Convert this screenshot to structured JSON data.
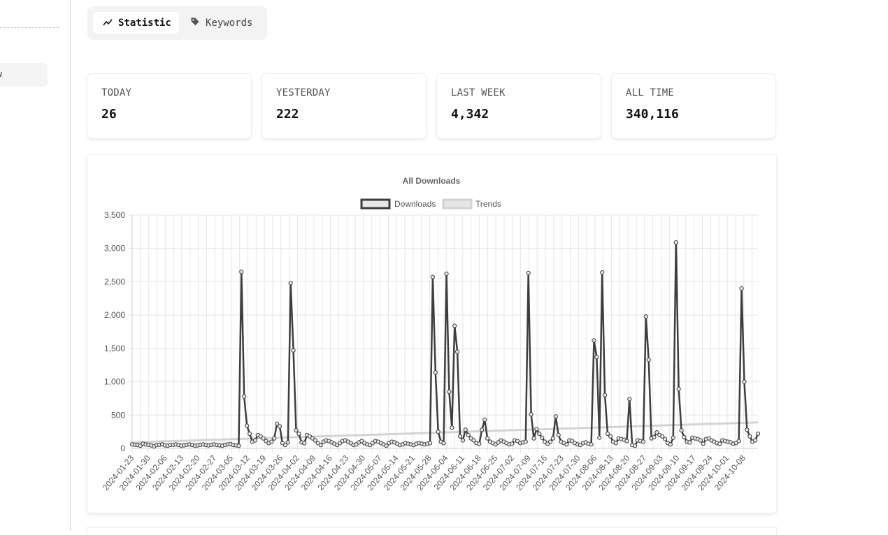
{
  "sidebar": {
    "active_item_label": "u"
  },
  "tabs": [
    {
      "label": "Statistic",
      "icon": "trend-line-icon",
      "active": true
    },
    {
      "label": "Keywords",
      "icon": "tag-icon",
      "active": false
    }
  ],
  "stats": [
    {
      "label": "TODAY",
      "value": "26"
    },
    {
      "label": "YESTERDAY",
      "value": "222"
    },
    {
      "label": "LAST WEEK",
      "value": "4,342"
    },
    {
      "label": "ALL TIME",
      "value": "340,116"
    }
  ],
  "colors": {
    "downloads_line": "#3d3d3d",
    "downloads_fill": "#e8e8e8",
    "trend_line": "#d3d3d3",
    "grid": "#e6e6e6"
  },
  "chart_data": {
    "type": "line",
    "title": "All Downloads",
    "legend": [
      "Downloads",
      "Trends"
    ],
    "legend_position": "top",
    "grid": true,
    "ylim": [
      0,
      3500
    ],
    "y_ticks": [
      "0",
      "500",
      "1,000",
      "1,500",
      "2,000",
      "2,500",
      "3,000",
      "3,500"
    ],
    "x_start": "2024-01-23",
    "x_end": "2024-10-14",
    "x_tick_labels": [
      "2024-01-23",
      "2024-01-30",
      "2024-02-06",
      "2024-02-13",
      "2024-02-20",
      "2024-02-27",
      "2024-03-05",
      "2024-03-12",
      "2024-03-19",
      "2024-03-26",
      "2024-04-02",
      "2024-04-09",
      "2024-04-16",
      "2024-04-23",
      "2024-04-30",
      "2024-05-07",
      "2024-05-14",
      "2024-05-21",
      "2024-05-28",
      "2024-06-04",
      "2024-06-11",
      "2024-06-18",
      "2024-06-25",
      "2024-07-02",
      "2024-07-09",
      "2024-07-16",
      "2024-07-23",
      "2024-07-30",
      "2024-08-06",
      "2024-08-13",
      "2024-08-20",
      "2024-08-27",
      "2024-09-03",
      "2024-09-10",
      "2024-09-17",
      "2024-09-24",
      "2024-10-01",
      "2024-10-08"
    ],
    "series": [
      {
        "name": "Downloads",
        "values": [
          60,
          55,
          50,
          40,
          70,
          60,
          55,
          45,
          30,
          50,
          55,
          60,
          45,
          40,
          50,
          55,
          60,
          50,
          40,
          45,
          55,
          60,
          50,
          40,
          45,
          55,
          60,
          50,
          45,
          55,
          60,
          50,
          45,
          40,
          55,
          60,
          65,
          50,
          45,
          40,
          2650,
          780,
          340,
          220,
          100,
          120,
          200,
          180,
          150,
          110,
          80,
          100,
          150,
          370,
          330,
          80,
          50,
          90,
          2480,
          1470,
          270,
          220,
          90,
          80,
          200,
          180,
          150,
          120,
          80,
          50,
          100,
          120,
          110,
          90,
          70,
          50,
          80,
          110,
          120,
          100,
          80,
          50,
          60,
          90,
          110,
          80,
          60,
          50,
          80,
          110,
          100,
          80,
          60,
          40,
          80,
          100,
          90,
          70,
          50,
          60,
          80,
          70,
          60,
          50,
          70,
          80,
          70,
          60,
          70,
          80,
          2570,
          1140,
          250,
          100,
          80,
          2620,
          850,
          310,
          1840,
          1450,
          180,
          120,
          280,
          200,
          150,
          120,
          80,
          70,
          280,
          430,
          150,
          100,
          80,
          60,
          90,
          120,
          100,
          80,
          60,
          70,
          120,
          110,
          80,
          90,
          100,
          2630,
          510,
          150,
          290,
          220,
          160,
          100,
          70,
          100,
          150,
          480,
          200,
          100,
          80,
          60,
          120,
          110,
          80,
          60,
          50,
          80,
          90,
          70,
          60,
          1620,
          1370,
          160,
          2640,
          800,
          220,
          180,
          100,
          80,
          150,
          140,
          130,
          110,
          740,
          50,
          40,
          120,
          110,
          100,
          1980,
          1330,
          150,
          170,
          240,
          200,
          180,
          140,
          80,
          60,
          160,
          3090,
          890,
          270,
          170,
          100,
          90,
          160,
          150,
          140,
          120,
          70,
          140,
          150,
          120,
          100,
          80,
          70,
          120,
          110,
          100,
          90,
          70,
          80,
          110,
          2400,
          1000,
          280,
          180,
          100,
          120,
          220
        ]
      },
      {
        "name": "Trends",
        "values_start": 90,
        "values_end": 390
      }
    ]
  }
}
